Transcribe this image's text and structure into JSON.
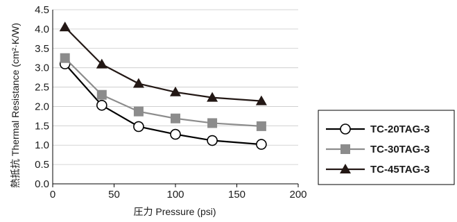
{
  "chart_data": {
    "type": "line",
    "title": "",
    "xlabel": "圧力 Pressure (psi)",
    "ylabel": "熱抵抗 Thermal Resistance (cm²·K/W)",
    "xlim": [
      0,
      200
    ],
    "ylim": [
      0,
      4.5
    ],
    "x_ticks": [
      "0",
      "50",
      "100",
      "150",
      "200"
    ],
    "y_ticks": [
      "0.0",
      "0.5",
      "1.0",
      "1.5",
      "2.0",
      "2.5",
      "3.0",
      "3.5",
      "4.0",
      "4.5"
    ],
    "grid": "horizontal",
    "legend_position": "right",
    "series": [
      {
        "name": "TC-20TAG-3",
        "marker": "circle-open",
        "color": "#000000",
        "x": [
          10,
          40,
          70,
          100,
          130,
          170
        ],
        "y": [
          3.1,
          2.03,
          1.48,
          1.28,
          1.12,
          1.02
        ]
      },
      {
        "name": "TC-30TAG-3",
        "marker": "square",
        "color": "#8c8c8c",
        "x": [
          10,
          40,
          70,
          100,
          130,
          170
        ],
        "y": [
          3.25,
          2.3,
          1.87,
          1.69,
          1.57,
          1.49
        ]
      },
      {
        "name": "TC-45TAG-3",
        "marker": "triangle",
        "color": "#231815",
        "x": [
          10,
          40,
          70,
          100,
          130,
          170
        ],
        "y": [
          4.05,
          3.09,
          2.59,
          2.37,
          2.23,
          2.14
        ]
      }
    ]
  }
}
